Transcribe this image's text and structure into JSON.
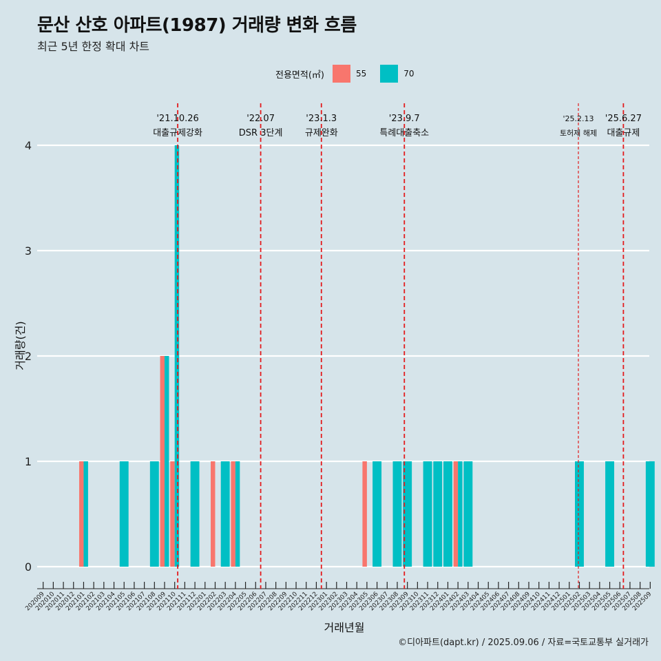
{
  "title": "문산 산호 아파트(1987) 거래량 변화 흐름",
  "subtitle": "최근 5년 한정 확대 차트",
  "caption": "©디아파트(dapt.kr) / 2025.09.06 / 자료=국토교통부 실거래가",
  "colors": {
    "background": "#d6e4ea",
    "s55": "#f8766d",
    "s70": "#00bfc4",
    "vline": "#e31a1c",
    "grid": "#ffffff"
  },
  "chart_data": {
    "type": "bar",
    "xlabel": "거래년월",
    "ylabel": "거래량(건)",
    "ylim": [
      0,
      4
    ],
    "yticks": [
      0,
      1,
      2,
      3,
      4
    ],
    "grid": true,
    "legend_title": "전용면적(㎡)",
    "legend_position": "top",
    "categories": [
      "202009",
      "202010",
      "202011",
      "202012",
      "202101",
      "202102",
      "202103",
      "202104",
      "202105",
      "202106",
      "202107",
      "202108",
      "202109",
      "202110",
      "202111",
      "202112",
      "202201",
      "202202",
      "202203",
      "202204",
      "202205",
      "202206",
      "202207",
      "202208",
      "202209",
      "202210",
      "202211",
      "202212",
      "202301",
      "202302",
      "202303",
      "202304",
      "202305",
      "202306",
      "202307",
      "202308",
      "202309",
      "202310",
      "202311",
      "202312",
      "202401",
      "202402",
      "202403",
      "202404",
      "202405",
      "202406",
      "202407",
      "202408",
      "202409",
      "202410",
      "202411",
      "202412",
      "202501",
      "202502",
      "202503",
      "202504",
      "202505",
      "202506",
      "202507",
      "202508",
      "202509"
    ],
    "series": [
      {
        "name": "55",
        "color": "#f8766d",
        "values": [
          0,
          0,
          0,
          0,
          1,
          0,
          0,
          0,
          0,
          0,
          0,
          0,
          2,
          1,
          0,
          0,
          0,
          1,
          0,
          1,
          0,
          0,
          0,
          0,
          0,
          0,
          0,
          0,
          0,
          0,
          0,
          0,
          1,
          0,
          0,
          0,
          0,
          0,
          0,
          0,
          0,
          1,
          0,
          0,
          0,
          0,
          0,
          0,
          0,
          0,
          0,
          0,
          0,
          0,
          0,
          0,
          0,
          0,
          0,
          0,
          0
        ]
      },
      {
        "name": "70",
        "color": "#00bfc4",
        "values": [
          0,
          0,
          0,
          0,
          1,
          0,
          0,
          0,
          1,
          0,
          0,
          1,
          2,
          4,
          0,
          1,
          0,
          0,
          1,
          1,
          0,
          0,
          0,
          0,
          0,
          0,
          0,
          0,
          0,
          0,
          0,
          0,
          0,
          1,
          0,
          1,
          1,
          0,
          1,
          1,
          1,
          1,
          1,
          0,
          0,
          0,
          0,
          0,
          0,
          0,
          0,
          0,
          0,
          1,
          0,
          0,
          1,
          0,
          0,
          0,
          1
        ]
      }
    ],
    "annotations": [
      {
        "date": "'21.10.26",
        "label": "대출규제강화",
        "x": "202110",
        "frac": 0.8,
        "style": "bold"
      },
      {
        "date": "'22.07",
        "label": "DSR 3단계",
        "x": "202207",
        "frac": 0.0,
        "style": "bold"
      },
      {
        "date": "'23.1.3",
        "label": "규제완화",
        "x": "202301",
        "frac": 0.0,
        "style": "bold"
      },
      {
        "date": "'23.9.7",
        "label": "특례대출축소",
        "x": "202309",
        "frac": 0.2,
        "style": "bold"
      },
      {
        "date": "'25.2.13",
        "label": "토허제 해제",
        "x": "202502",
        "frac": 0.4,
        "style": "thin"
      },
      {
        "date": "'25.6.27",
        "label": "대출규제",
        "x": "202506",
        "frac": 0.85,
        "style": "bold"
      }
    ]
  }
}
